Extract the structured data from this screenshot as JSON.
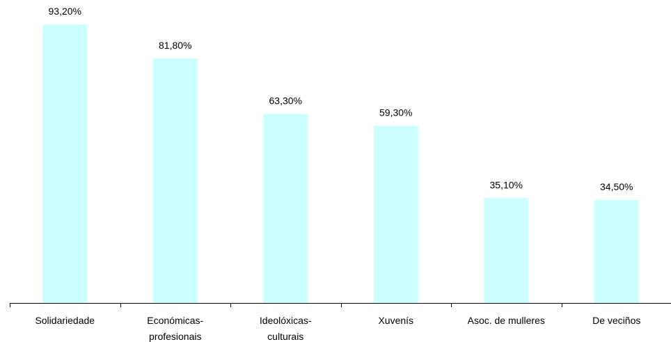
{
  "chart_data": {
    "type": "bar",
    "categories": [
      [
        "Solidariedade"
      ],
      [
        "Económicas-",
        "profesionais"
      ],
      [
        "Ideolóxicas-",
        "culturais"
      ],
      [
        "Xuvenís"
      ],
      [
        "Asoc. de mulleres"
      ],
      [
        "De veciños"
      ]
    ],
    "values": [
      93.2,
      81.8,
      63.3,
      59.3,
      35.1,
      34.5
    ],
    "value_labels": [
      "93,20%",
      "81,80%",
      "63,30%",
      "59,30%",
      "35,10%",
      "34,50%"
    ],
    "ylim": [
      0,
      100
    ],
    "grid": false,
    "legend": "none",
    "colors": {
      "bar": "#ccffff",
      "axis": "#000000",
      "text": "#000000"
    }
  }
}
